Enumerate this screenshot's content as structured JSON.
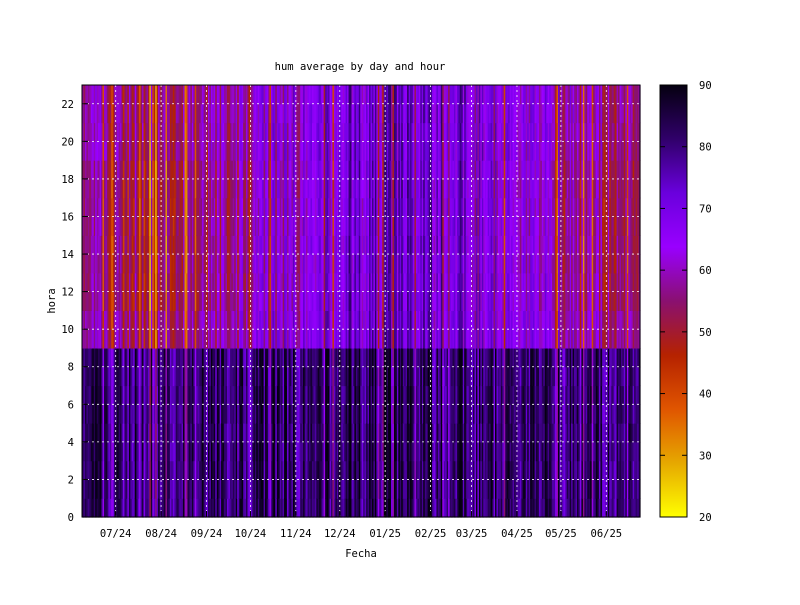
{
  "chart_data": {
    "type": "heatmap",
    "title": "hum average by day and hour",
    "xlabel": "Fecha",
    "ylabel": "hora",
    "x_ticks": [
      "07/24",
      "08/24",
      "09/24",
      "10/24",
      "11/24",
      "12/24",
      "01/25",
      "02/25",
      "03/25",
      "04/25",
      "05/25",
      "06/25"
    ],
    "y_ticks": [
      0,
      2,
      4,
      6,
      8,
      10,
      12,
      14,
      16,
      18,
      20,
      22
    ],
    "ylim": [
      0,
      23
    ],
    "xlim": [
      "2024-06-08",
      "2025-06-24"
    ],
    "colorbar": {
      "min": 20,
      "max": 90,
      "ticks": [
        20,
        30,
        40,
        50,
        60,
        70,
        80,
        90
      ],
      "palette": [
        "#ffff00",
        "#e6a800",
        "#e05500",
        "#b52200",
        "#8a1070",
        "#9900ff",
        "#6a00dd",
        "#30006a",
        "#050010"
      ]
    },
    "grid": true,
    "pattern": {
      "night_hours": [
        0,
        9
      ],
      "day_hours": [
        10,
        23
      ],
      "night_value_typical": 80,
      "day_value_typical_summer": 55,
      "day_value_typical_winter": 72
    }
  }
}
